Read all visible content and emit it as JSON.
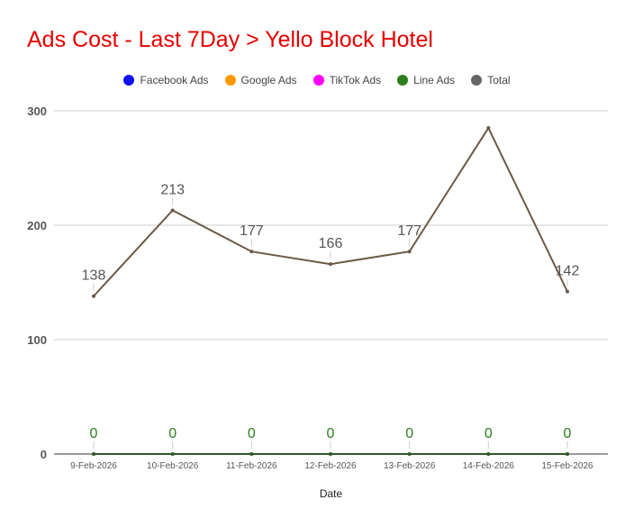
{
  "chart_data": {
    "type": "line",
    "title": "Ads Cost - Last 7Day > Yello Block Hotel",
    "xlabel": "Date",
    "ylabel": "",
    "ylim": [
      0,
      300
    ],
    "yticks": [
      0,
      100,
      200,
      300
    ],
    "grid": true,
    "legend_position": "top",
    "title_color": "#e50000",
    "categories": [
      "9-Feb-2026",
      "10-Feb-2026",
      "11-Feb-2026",
      "12-Feb-2026",
      "13-Feb-2026",
      "14-Feb-2026",
      "15-Feb-2026"
    ],
    "series": [
      {
        "name": "Facebook Ads",
        "color": "#1010ee",
        "values": [
          0,
          0,
          0,
          0,
          0,
          0,
          0
        ],
        "show_labels": false
      },
      {
        "name": "Google Ads",
        "color": "#ff9900",
        "values": [
          0,
          0,
          0,
          0,
          0,
          0,
          0
        ],
        "show_labels": false
      },
      {
        "name": "TikTok Ads",
        "color": "#ff00ff",
        "values": [
          0,
          0,
          0,
          0,
          0,
          0,
          0
        ],
        "show_labels": false
      },
      {
        "name": "Line Ads",
        "color": "#2e7d1e",
        "values": [
          0,
          0,
          0,
          0,
          0,
          0,
          0
        ],
        "show_labels": true,
        "label_color": "#2e7d1e"
      },
      {
        "name": "Total",
        "color": "#6b5a45",
        "legend_color": "#666666",
        "values": [
          138,
          213,
          177,
          166,
          177,
          285,
          142
        ],
        "show_labels": true,
        "label_color": "#555555",
        "label_skip_index": [
          5
        ]
      }
    ]
  }
}
